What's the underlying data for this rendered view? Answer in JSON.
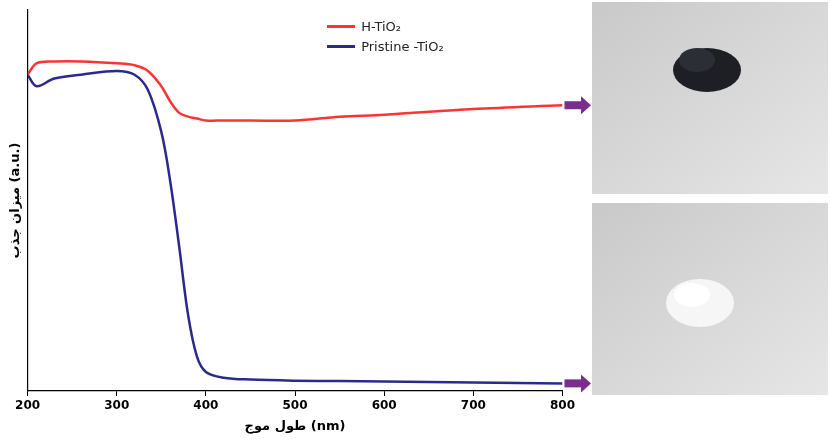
{
  "chart_data": {
    "type": "line",
    "x_label": "طول موج (nm)",
    "y_label": "میزان جذب (a.u.)",
    "x": [
      200,
      210,
      230,
      260,
      300,
      320,
      335,
      350,
      360,
      370,
      380,
      390,
      400,
      420,
      450,
      500,
      550,
      600,
      700,
      800
    ],
    "series": [
      {
        "name": "H-TiO₂",
        "color": "#ff3333",
        "values": [
          0.83,
          0.86,
          0.865,
          0.865,
          0.86,
          0.855,
          0.84,
          0.8,
          0.76,
          0.73,
          0.72,
          0.715,
          0.71,
          0.71,
          0.71,
          0.71,
          0.72,
          0.725,
          0.74,
          0.75
        ]
      },
      {
        "name": "Pristine -TiO₂",
        "color": "#2b2a8c",
        "values": [
          0.83,
          0.8,
          0.82,
          0.83,
          0.84,
          0.83,
          0.79,
          0.68,
          0.55,
          0.38,
          0.2,
          0.09,
          0.05,
          0.035,
          0.03,
          0.027,
          0.026,
          0.025,
          0.022,
          0.02
        ]
      }
    ],
    "xlim": [
      200,
      800
    ],
    "xticks": [
      200,
      300,
      400,
      500,
      600,
      700,
      800
    ],
    "ylim": [
      0,
      1
    ],
    "yticks": [],
    "tick_labels": "x",
    "grid": false,
    "legend": "top-right"
  }
}
